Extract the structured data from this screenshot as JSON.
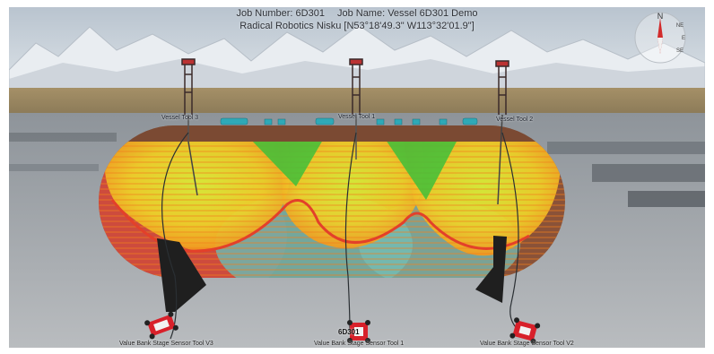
{
  "hud": {
    "job_number": "Job Number: 6D301",
    "job_name": "Job Name: Vessel 6D301 Demo",
    "location": "Radical Robotics Nisku [N53°18'49.3\" W113°32'01.9\"]"
  },
  "compass": {
    "north": "N",
    "east": "E",
    "northeast": "NE",
    "southeast": "SE"
  },
  "masts": [
    {
      "label": "Vessel Tool 3"
    },
    {
      "label": "Vessel Tool 1"
    },
    {
      "label": "Vessel Tool 2"
    }
  ],
  "crawlers": [
    {
      "id": "",
      "label": "Value Bank Stage Sensor Tool V3"
    },
    {
      "id": "6D301",
      "label": "Value Bank Stage Sensor Tool 1"
    },
    {
      "id": "",
      "label": "Value Bank Stage Sensor Tool V2"
    }
  ],
  "colors": {
    "sky": "#c9d2da",
    "mountains": "#e8ecf0",
    "plain": "#9c8a63",
    "tarmac": "#8d9298",
    "vessel_shell": "#8a5238",
    "scan_green": "#3fbf3a",
    "scan_yellow": "#e8d02a",
    "scan_orange": "#f08a1e",
    "scan_red": "#d8483a",
    "scan_teal": "#6fb6ae",
    "saddle": "#1f1f1f",
    "crawler": "#d8202a"
  }
}
